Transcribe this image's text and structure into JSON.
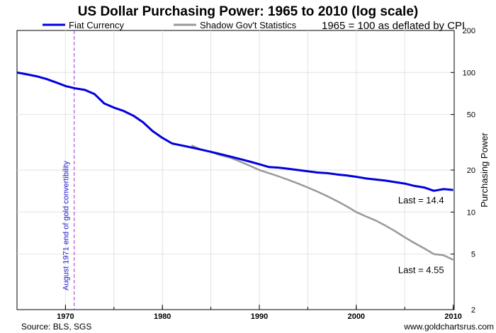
{
  "chart_data": {
    "type": "line",
    "title": "US Dollar Purchasing Power: 1965 to 2010 (log scale)",
    "subtitle": "1965 = 100 as deflated by CPI",
    "ylabel": "Purchasing Power",
    "xlabel": "",
    "yscale": "log",
    "ylim": [
      2,
      200
    ],
    "xlim": [
      1965,
      2010.1
    ],
    "yticks": [
      2,
      5,
      10,
      20,
      50,
      100,
      200
    ],
    "xticks": [
      1970,
      1980,
      1990,
      2000,
      2010
    ],
    "grid": true,
    "legend_position": "top-left",
    "series": [
      {
        "name": "Fiat Currency",
        "color": "#0000dd",
        "x": [
          1965,
          1966,
          1967,
          1968,
          1969,
          1970,
          1971,
          1972,
          1973,
          1974,
          1975,
          1976,
          1977,
          1978,
          1979,
          1980,
          1981,
          1982,
          1983,
          1984,
          1985,
          1986,
          1987,
          1988,
          1989,
          1990,
          1991,
          1992,
          1993,
          1994,
          1995,
          1996,
          1997,
          1998,
          1999,
          2000,
          2001,
          2002,
          2003,
          2004,
          2005,
          2006,
          2007,
          2008,
          2009,
          2010
        ],
        "values": [
          100,
          97,
          94,
          90,
          85,
          80,
          77,
          75,
          70,
          60,
          56,
          53,
          49,
          44,
          38,
          34,
          31,
          30,
          29,
          28,
          27,
          26,
          25,
          24,
          23,
          22,
          21,
          20.8,
          20.4,
          20,
          19.6,
          19.2,
          19,
          18.6,
          18.3,
          17.9,
          17.4,
          17.1,
          16.8,
          16.4,
          16,
          15.4,
          15,
          14.2,
          14.6,
          14.4
        ]
      },
      {
        "name": "Shadow Gov't Statistics",
        "color": "#999999",
        "x": [
          1983,
          1984,
          1985,
          1986,
          1987,
          1988,
          1989,
          1990,
          1991,
          1992,
          1993,
          1994,
          1995,
          1996,
          1997,
          1998,
          1999,
          2000,
          2001,
          2002,
          2003,
          2004,
          2005,
          2006,
          2007,
          2008,
          2009,
          2010
        ],
        "values": [
          30,
          28,
          27,
          25.5,
          24.5,
          23,
          21.5,
          20,
          19,
          18,
          17,
          16,
          15,
          14,
          13,
          12,
          11,
          10,
          9.3,
          8.7,
          8,
          7.3,
          6.6,
          6,
          5.5,
          5,
          4.9,
          4.55
        ]
      }
    ],
    "annotations": [
      {
        "text": "August 1971 end of gold convertibility",
        "x": 1970.9,
        "orientation": "vertical"
      },
      {
        "text": "Last = 14.4",
        "x": 2010,
        "y": 14.4,
        "series": "Fiat Currency"
      },
      {
        "text": "Last = 4.55",
        "x": 2010,
        "y": 4.55,
        "series": "Shadow Gov't Statistics"
      }
    ],
    "source": "Source: BLS, SGS",
    "credit": "www.goldchartsrus.com"
  }
}
